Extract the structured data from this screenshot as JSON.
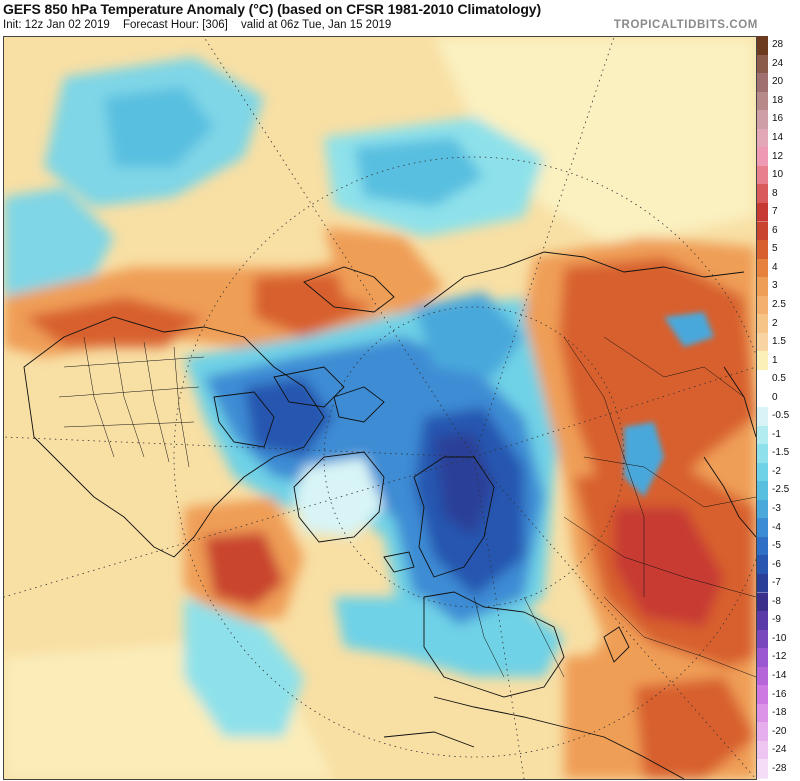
{
  "header": {
    "title": "GEFS 850 hPa Temperature Anomaly (°C) (based on CFSR 1981-2010 Climatology)",
    "init": "Init: 12z Jan 02 2019",
    "forecast_hour": "Forecast Hour: [306]",
    "valid": "valid at 06z Tue, Jan 15 2019",
    "brand": "TROPICALTIDBITS.COM"
  },
  "colorbar": {
    "labels": [
      "28",
      "24",
      "20",
      "18",
      "16",
      "14",
      "12",
      "10",
      "8",
      "7",
      "6",
      "5",
      "4",
      "3",
      "2.5",
      "2",
      "1.5",
      "1",
      "0.5",
      "0",
      "-0.5",
      "-1",
      "-1.5",
      "-2",
      "-2.5",
      "-3",
      "-4",
      "-5",
      "-6",
      "-7",
      "-8",
      "-9",
      "-10",
      "-12",
      "-14",
      "-16",
      "-18",
      "-20",
      "-24",
      "-28"
    ],
    "colors": [
      "#6b3a1f",
      "#8a5a4a",
      "#a07070",
      "#b78a8a",
      "#cf9fa6",
      "#e2a8b8",
      "#ef9ab5",
      "#e77f8f",
      "#d95b5b",
      "#c73a33",
      "#c9452f",
      "#d8602f",
      "#e6823e",
      "#ef9e57",
      "#f4b06e",
      "#f7c487",
      "#f8d5a0",
      "#faf0b8",
      "#ffffff",
      "#ffffff",
      "#d8f4f6",
      "#b2ecf0",
      "#8ee1ea",
      "#6fd2e6",
      "#58bfe0",
      "#4aa8db",
      "#3c8cd4",
      "#2f6fc6",
      "#2856b0",
      "#2b3f98",
      "#3a2f8a",
      "#5a3aa8",
      "#7a48bd",
      "#9b57cf",
      "#b567da",
      "#cd7be3",
      "#dc94e8",
      "#e7aeee",
      "#efc6f2",
      "#f6ddf7"
    ]
  },
  "map": {
    "projection": "polar stereographic (North Hemisphere)",
    "colors": {
      "background_anomaly": "#f6d99a",
      "warm_anomaly": "#d8602f",
      "strong_warm_anomaly": "#c73a33",
      "cold_anomaly": "#4aa8db",
      "strong_cold_anomaly": "#2856b0"
    }
  }
}
